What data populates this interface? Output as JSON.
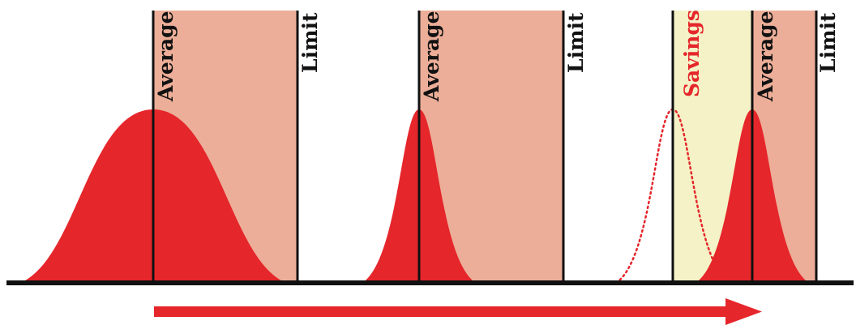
{
  "labels": {
    "average": "Average",
    "limit": "Limit",
    "savings": "Savings"
  },
  "colors": {
    "distribution_fill": "#e5262b",
    "margin_zone": "#ecae98",
    "savings_zone": "#f4f2c6",
    "savings_text": "#e5262b",
    "lines": "#111111",
    "arrow": "#e5262b"
  },
  "panels": [
    {
      "average_label": "Average",
      "limit_label": "Limit",
      "curve": "wide"
    },
    {
      "average_label": "Average",
      "limit_label": "Limit",
      "curve": "narrow"
    },
    {
      "average_label": "Average",
      "limit_label": "Limit",
      "curve": "narrow-shifted",
      "savings_label": "Savings",
      "previous_curve": "dotted-outline"
    }
  ],
  "arrow": {
    "direction": "right"
  }
}
